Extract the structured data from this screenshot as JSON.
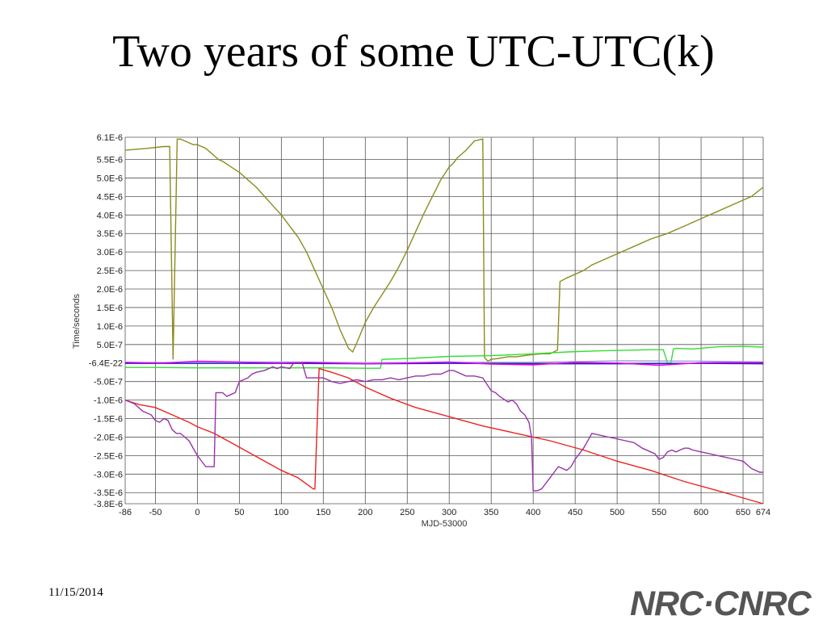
{
  "slide": {
    "title": "Two years of some UTC-UTC(k)",
    "date": "11/15/2014",
    "logo_text": "NRC·CNRC"
  },
  "chart_data": {
    "type": "line",
    "xlabel": "MJD-53000",
    "ylabel": "Time/seconds",
    "xlim": [
      -86,
      674
    ],
    "ylim": [
      -3.8e-06,
      6.1e-06
    ],
    "x_ticks": [
      -86,
      -50,
      0,
      50,
      100,
      150,
      200,
      250,
      300,
      350,
      400,
      450,
      500,
      550,
      600,
      650,
      674
    ],
    "x_tick_labels": [
      "-86",
      "-50",
      "0",
      "50",
      "100",
      "150",
      "200",
      "250",
      "300",
      "350",
      "400",
      "450",
      "500",
      "550",
      "600",
      "650",
      "674"
    ],
    "y_ticks": [
      6.1e-06,
      5.5e-06,
      5e-06,
      4.5e-06,
      4e-06,
      3.5e-06,
      3e-06,
      2.5e-06,
      2e-06,
      1.5e-06,
      1e-06,
      5e-07,
      -6.4e-22,
      -5e-07,
      -1e-06,
      -1.5e-06,
      -2e-06,
      -2.5e-06,
      -3e-06,
      -3.5e-06,
      -3.8e-06
    ],
    "y_tick_labels": [
      "6.1E-6",
      "5.5E-6",
      "5.0E-6",
      "4.5E-6",
      "4.0E-6",
      "3.5E-6",
      "3.0E-6",
      "2.5E-6",
      "2.0E-6",
      "1.5E-6",
      "1.0E-6",
      "5.0E-7",
      "-6.4E-22",
      "-5.0E-7",
      "-1.0E-6",
      "-1.5E-6",
      "-2.0E-6",
      "-2.5E-6",
      "-3.0E-6",
      "-3.5E-6",
      "-3.8E-6"
    ],
    "grid": true,
    "series": [
      {
        "color": "#8c8c1e",
        "x": [
          -86,
          -60,
          -40,
          -33,
          -29,
          -24,
          -20,
          -15,
          -10,
          -5,
          0,
          5,
          10,
          15,
          20,
          25,
          30,
          40,
          50,
          60,
          70,
          80,
          90,
          100,
          110,
          120,
          130,
          140,
          150,
          160,
          170,
          180,
          185,
          190,
          200,
          210,
          220,
          230,
          240,
          250,
          260,
          270,
          280,
          290,
          300,
          305,
          310,
          320,
          330,
          340,
          342,
          346,
          350,
          360,
          370,
          380,
          390,
          400,
          410,
          420,
          429,
          432,
          440,
          450,
          460,
          470,
          480,
          490,
          500,
          520,
          540,
          560,
          580,
          600,
          620,
          640,
          660,
          674
        ],
        "values": [
          5.75e-06,
          5.8e-06,
          5.85e-06,
          5.85e-06,
          1e-07,
          6.05e-06,
          6.05e-06,
          6e-06,
          5.95e-06,
          5.9e-06,
          5.9e-06,
          5.85e-06,
          5.8e-06,
          5.7e-06,
          5.6e-06,
          5.5e-06,
          5.45e-06,
          5.3e-06,
          5.15e-06,
          4.95e-06,
          4.75e-06,
          4.5e-06,
          4.25e-06,
          4e-06,
          3.7e-06,
          3.4e-06,
          3e-06,
          2.5e-06,
          2e-06,
          1.5e-06,
          9e-07,
          4e-07,
          3e-07,
          5.5e-07,
          1.1e-06,
          1.5e-06,
          1.85e-06,
          2.2e-06,
          2.6e-06,
          3.05e-06,
          3.55e-06,
          4.05e-06,
          4.5e-06,
          4.95e-06,
          5.3e-06,
          5.4e-06,
          5.55e-06,
          5.75e-06,
          6e-06,
          6.05e-06,
          1.5e-07,
          5e-08,
          1e-07,
          1.3e-07,
          1.7e-07,
          1.7e-07,
          2e-07,
          2.3e-07,
          2.5e-07,
          2.5e-07,
          3.5e-07,
          2.2e-06,
          2.3e-06,
          2.4e-06,
          2.5e-06,
          2.65e-06,
          2.75e-06,
          2.85e-06,
          2.95e-06,
          3.15e-06,
          3.35e-06,
          3.5e-06,
          3.7e-06,
          3.9e-06,
          4.1e-06,
          4.3e-06,
          4.5e-06,
          4.75e-06
        ]
      },
      {
        "color": "#33dd33",
        "x": [
          -86,
          -50,
          0,
          50,
          100,
          150,
          200,
          218,
          220,
          250,
          300,
          350,
          400,
          440,
          480,
          520,
          540,
          555,
          560,
          564,
          567,
          570,
          590,
          600,
          620,
          650,
          674
        ],
        "values": [
          -1.2e-07,
          -1.2e-07,
          -1.3e-07,
          -1.3e-07,
          -1.3e-07,
          -1.3e-07,
          -1.4e-07,
          -1.4e-07,
          1e-07,
          1.2e-07,
          1.8e-07,
          2e-07,
          2.5e-07,
          3e-07,
          3.3e-07,
          3.5e-07,
          3.6e-07,
          3.6e-07,
          0.0,
          0.0,
          3.8e-07,
          4e-07,
          3.8e-07,
          4e-07,
          4.4e-07,
          4.5e-07,
          4.3e-07
        ]
      },
      {
        "color": "#a0a0d8",
        "x": [
          -86,
          0,
          100,
          200,
          300,
          400,
          500,
          600,
          674
        ],
        "values": [
          1e-08,
          2e-08,
          3e-08,
          1e-08,
          2e-08,
          2e-08,
          6e-08,
          5e-08,
          3e-08
        ]
      },
      {
        "color": "#2020cc",
        "x": [
          -86,
          0,
          100,
          200,
          300,
          400,
          500,
          600,
          674
        ],
        "values": [
          -1e-08,
          -1e-08,
          -1e-08,
          -2e-08,
          -1e-08,
          -2e-08,
          -2e-08,
          -1e-08,
          -2e-08
        ]
      },
      {
        "color": "#ee00ee",
        "x": [
          -86,
          -40,
          0,
          50,
          100,
          130,
          200,
          250,
          300,
          350,
          400,
          450,
          500,
          550,
          600,
          674
        ],
        "values": [
          2e-08,
          0.0,
          5e-08,
          3e-08,
          0.0,
          2e-08,
          -2e-08,
          0.0,
          3e-08,
          -3e-08,
          -5e-08,
          2e-08,
          0.0,
          -6e-08,
          1e-08,
          2e-08
        ]
      },
      {
        "color": "#ee2222",
        "x": [
          -86,
          -70,
          -50,
          -30,
          -10,
          0,
          20,
          40,
          60,
          80,
          100,
          120,
          138,
          140,
          145,
          160,
          180,
          200,
          230,
          260,
          300,
          340,
          380,
          420,
          460,
          500,
          540,
          580,
          620,
          674
        ],
        "values": [
          -1e-06,
          -1.12e-06,
          -1.2e-06,
          -1.4e-06,
          -1.6e-06,
          -1.72e-06,
          -1.9e-06,
          -2.15e-06,
          -2.4e-06,
          -2.65e-06,
          -2.9e-06,
          -3.1e-06,
          -3.4e-06,
          -3.4e-06,
          -1.5e-07,
          -2.5e-07,
          -4e-07,
          -6.5e-07,
          -9.5e-07,
          -1.2e-06,
          -1.45e-06,
          -1.7e-06,
          -1.9e-06,
          -2.1e-06,
          -2.35e-06,
          -2.65e-06,
          -2.9e-06,
          -3.2e-06,
          -3.45e-06,
          -3.8e-06
        ]
      },
      {
        "color": "#9933aa",
        "x": [
          -86,
          -75,
          -65,
          -55,
          -50,
          -45,
          -40,
          -35,
          -30,
          -25,
          -20,
          -10,
          0,
          10,
          20,
          22,
          25,
          30,
          35,
          40,
          45,
          50,
          55,
          60,
          65,
          70,
          80,
          90,
          95,
          100,
          110,
          115,
          125,
          130,
          140,
          150,
          160,
          170,
          180,
          190,
          200,
          210,
          220,
          230,
          240,
          250,
          260,
          270,
          280,
          290,
          300,
          305,
          310,
          320,
          330,
          340,
          350,
          355,
          360,
          370,
          375,
          380,
          385,
          390,
          395,
          398,
          400,
          405,
          410,
          420,
          425,
          430,
          440,
          445,
          450,
          460,
          470,
          480,
          490,
          500,
          510,
          520,
          530,
          540,
          545,
          550,
          555,
          560,
          565,
          570,
          575,
          580,
          585,
          590,
          600,
          610,
          620,
          630,
          640,
          650,
          660,
          670,
          674
        ],
        "values": [
          -1e-06,
          -1.1e-06,
          -1.3e-06,
          -1.4e-06,
          -1.55e-06,
          -1.6e-06,
          -1.5e-06,
          -1.55e-06,
          -1.8e-06,
          -1.9e-06,
          -1.9e-06,
          -2.1e-06,
          -2.5e-06,
          -2.8e-06,
          -2.8e-06,
          -8e-07,
          -8e-07,
          -8e-07,
          -9e-07,
          -8.5e-07,
          -8e-07,
          -5e-07,
          -4.5e-07,
          -4e-07,
          -3e-07,
          -2.5e-07,
          -2e-07,
          -1e-07,
          -1.5e-07,
          -1e-07,
          -1.5e-07,
          0.0,
          0.0,
          -4e-07,
          -4e-07,
          -4e-07,
          -5e-07,
          -5.5e-07,
          -5e-07,
          -4.5e-07,
          -5e-07,
          -4.5e-07,
          -4.5e-07,
          -4e-07,
          -4.5e-07,
          -4e-07,
          -3.5e-07,
          -3.5e-07,
          -3e-07,
          -3e-07,
          -2e-07,
          -2e-07,
          -2.5e-07,
          -3.5e-07,
          -3.5e-07,
          -4e-07,
          -7.5e-07,
          -8e-07,
          -9e-07,
          -1.05e-06,
          -1e-06,
          -1.1e-06,
          -1.3e-06,
          -1.4e-06,
          -1.6e-06,
          -2e-06,
          -3.45e-06,
          -3.45e-06,
          -3.4e-06,
          -3.1e-06,
          -2.95e-06,
          -2.8e-06,
          -2.9e-06,
          -2.8e-06,
          -2.6e-06,
          -2.3e-06,
          -1.9e-06,
          -1.95e-06,
          -2e-06,
          -2.05e-06,
          -2.1e-06,
          -2.15e-06,
          -2.3e-06,
          -2.4e-06,
          -2.45e-06,
          -2.6e-06,
          -2.55e-06,
          -2.4e-06,
          -2.35e-06,
          -2.4e-06,
          -2.35e-06,
          -2.3e-06,
          -2.3e-06,
          -2.35e-06,
          -2.4e-06,
          -2.45e-06,
          -2.5e-06,
          -2.55e-06,
          -2.6e-06,
          -2.65e-06,
          -2.85e-06,
          -2.95e-06,
          -2.95e-06
        ]
      }
    ]
  }
}
